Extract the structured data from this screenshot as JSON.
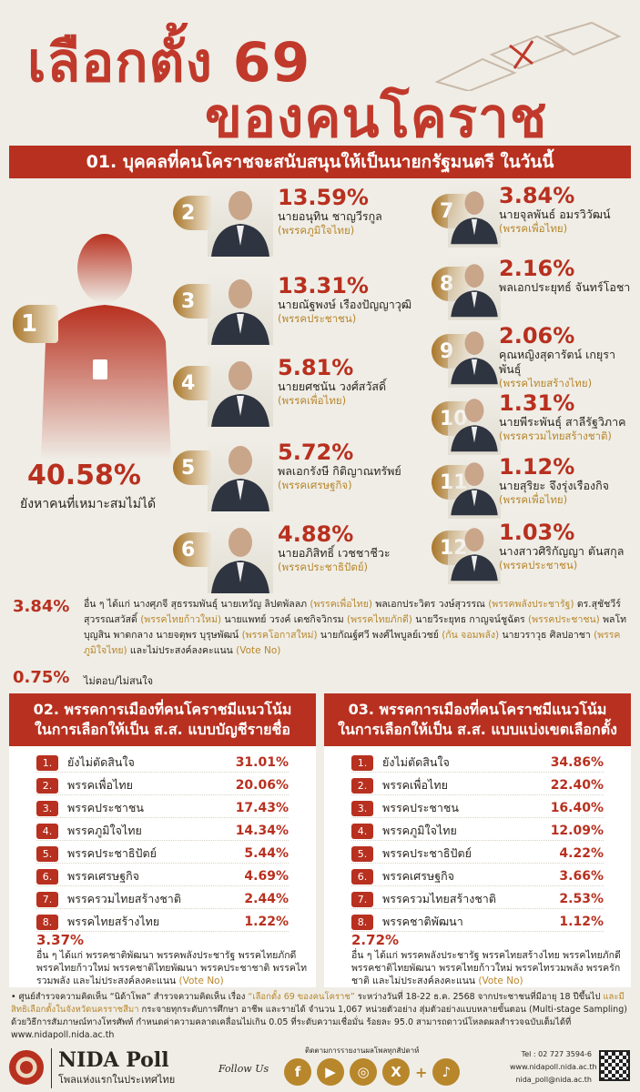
{
  "header": {
    "title_line1": "เลือกตั้ง 69",
    "title_line2": "ของคนโคราช"
  },
  "section1": {
    "title": "01. บุคคลที่คนโคราชจะสนับสนุนให้เป็นนายกรัฐมนตรี ในวันนี้",
    "first": {
      "rank": "1",
      "pct": "40.58%",
      "label": "ยังหาคนที่เหมาะสมไม่ได้"
    },
    "candidates": [
      {
        "rank": "2",
        "pct": "13.59%",
        "name": "นายอนุทิน ชาญวีรกูล",
        "party": "(พรรคภูมิใจไทย)"
      },
      {
        "rank": "3",
        "pct": "13.31%",
        "name": "นายณัฐพงษ์ เรืองปัญญาวุฒิ",
        "party": "(พรรคประชาชน)"
      },
      {
        "rank": "4",
        "pct": "5.81%",
        "name": "นายยศชนัน วงศ์สวัสดิ์",
        "party": "(พรรคเพื่อไทย)"
      },
      {
        "rank": "5",
        "pct": "5.72%",
        "name": "พลเอกรังษี กิติญาณทรัพย์",
        "party": "(พรรคเศรษฐกิจ)"
      },
      {
        "rank": "6",
        "pct": "4.88%",
        "name": "นายอภิสิทธิ์ เวชชาชีวะ",
        "party": "(พรรคประชาธิปัตย์)"
      },
      {
        "rank": "7",
        "pct": "3.84%",
        "name": "นายจุลพันธ์ อมรวิวัฒน์",
        "party": "(พรรคเพื่อไทย)"
      },
      {
        "rank": "8",
        "pct": "2.16%",
        "name": "พลเอกประยุทธ์ จันทร์โอชา",
        "party": ""
      },
      {
        "rank": "9",
        "pct": "2.06%",
        "name": "คุณหญิงสุดารัตน์ เกยุราพันธุ์",
        "party": "(พรรคไทยสร้างไทย)"
      },
      {
        "rank": "10",
        "pct": "1.31%",
        "name": "นายพีระพันธุ์ สาลีรัฐวิภาค",
        "party": "(พรรครวมไทยสร้างชาติ)"
      },
      {
        "rank": "11",
        "pct": "1.12%",
        "name": "นายสุริยะ จึงรุ่งเรืองกิจ",
        "party": "(พรรคเพื่อไทย)"
      },
      {
        "rank": "12",
        "pct": "1.03%",
        "name": "นางสาวศิริกัญญา ตันสกุล",
        "party": "(พรรคประชาชน)"
      }
    ],
    "others": {
      "pct": "3.84%",
      "parts": [
        "อื่น ๆ ได้แก่ นางศุภจี สุธรรมพันธุ์ นายเทวัญ ลิปตพัลลภ ",
        "(พรรคเพื่อไทย)",
        " พลเอกประวิตร วงษ์สุวรรณ ",
        "(พรรคพลังประชารัฐ)",
        " ดร.สุชัชวีร์ สุวรรณสวัสดิ์ ",
        "(พรรคไทยก้าวใหม่)",
        " นายแพทย์ วรงค์ เดชกิจวิกรม ",
        "(พรรคไทยภักดี)",
        " นายวีระยุทธ กาญจน์ชูฉัตร ",
        "(พรรคประชาชน)",
        " พลโทบุญสิน พาดกลาง นายจตุพร บุรุษพัฒน์ ",
        "(พรรคโอกาสใหม่)",
        " นายกัณฐ์ศวี พงศ์ไพบูลย์เวชย์ ",
        "(กัน จอมพลัง)",
        " นายวราวุธ ศิลปอาชา ",
        "(พรรคภูมิใจไทย)",
        " และไม่ประสงค์ลงคะแนน ",
        "(Vote No)"
      ]
    },
    "no_answer": {
      "pct": "0.75%",
      "label": "ไม่ตอบ/ไม่สนใจ"
    }
  },
  "chart_data": [
    {
      "type": "table",
      "title": "02. พรรคการเมืองที่คนโคราชมีแนวโน้ม ในการเลือกให้เป็น ส.ส. แบบบัญชีรายชื่อ",
      "rows": [
        {
          "rank": "1.",
          "label": "ยังไม่ตัดสินใจ",
          "value": "31.01%"
        },
        {
          "rank": "2.",
          "label": "พรรคเพื่อไทย",
          "value": "20.06%"
        },
        {
          "rank": "3.",
          "label": "พรรคประชาชน",
          "value": "17.43%"
        },
        {
          "rank": "4.",
          "label": "พรรคภูมิใจไทย",
          "value": "14.34%"
        },
        {
          "rank": "5.",
          "label": "พรรคประชาธิปัตย์",
          "value": "5.44%"
        },
        {
          "rank": "6.",
          "label": "พรรคเศรษฐกิจ",
          "value": "4.69%"
        },
        {
          "rank": "7.",
          "label": "พรรครวมไทยสร้างชาติ",
          "value": "2.44%"
        },
        {
          "rank": "8.",
          "label": "พรรคไทยสร้างไทย",
          "value": "1.22%"
        }
      ],
      "other_pct": "3.37%",
      "other_text": "อื่น ๆ ได้แก่ พรรคชาติพัฒนา พรรคพลังประชารัฐ พรรคไทยภักดี พรรคไทยก้าวใหม่ พรรคชาติไทยพัฒนา พรรคประชาชาติ พรรคไทรวมพลัง และไม่ประสงค์ลงคะแนน ",
      "other_vote": "(Vote No)"
    },
    {
      "type": "table",
      "title": "03. พรรคการเมืองที่คนโคราชมีแนวโน้ม ในการเลือกให้เป็น ส.ส. แบบแบ่งเขตเลือกตั้ง",
      "rows": [
        {
          "rank": "1.",
          "label": "ยังไม่ตัดสินใจ",
          "value": "34.86%"
        },
        {
          "rank": "2.",
          "label": "พรรคเพื่อไทย",
          "value": "22.40%"
        },
        {
          "rank": "3.",
          "label": "พรรคประชาชน",
          "value": "16.40%"
        },
        {
          "rank": "4.",
          "label": "พรรคภูมิใจไทย",
          "value": "12.09%"
        },
        {
          "rank": "5.",
          "label": "พรรคประชาธิปัตย์",
          "value": "4.22%"
        },
        {
          "rank": "6.",
          "label": "พรรคเศรษฐกิจ",
          "value": "3.66%"
        },
        {
          "rank": "7.",
          "label": "พรรครวมไทยสร้างชาติ",
          "value": "2.53%"
        },
        {
          "rank": "8.",
          "label": "พรรคชาติพัฒนา",
          "value": "1.12%"
        }
      ],
      "other_pct": "2.72%",
      "other_text": "อื่น ๆ ได้แก่ พรรคพลังประชารัฐ พรรคไทยสร้างไทย พรรคไทยภักดี พรรคชาติไทยพัฒนา พรรคไทยก้าวใหม่ พรรคไทรวมพลัง พรรครักชาติ และไม่ประสงค์ลงคะแนน ",
      "other_vote": "(Vote No)"
    }
  ],
  "methodology": {
    "a": "• ศูนย์สำรวจความคิดเห็น “นิด้าโพล” สำรวจความคิดเห็น เรื่อง ",
    "b": "“เลือกตั้ง 69 ของคนโคราช”",
    "c": " ระหว่างวันที่ 18-22 ธ.ค. 2568 จากประชาชนที่มีอายุ 18 ปีขึ้นไป ",
    "d": "และมีสิทธิเลือกตั้งในจังหวัดนครราชสีมา",
    "e": " กระจายทุกระดับการศึกษา อาชีพ และรายได้ จำนวน 1,067 หน่วยตัวอย่าง สุ่มตัวอย่างแบบหลายขั้นตอน (Multi-stage Sampling) ด้วยวิธีการสัมภาษณ์ทางโทรศัพท์ กำหนดค่าความคลาดเคลื่อนไม่เกิน 0.05 ที่ระดับความเชื่อมั่น ร้อยละ 95.0 สามารถดาวน์โหลดผลสำรวจฉบับเต็มได้ที่ www.nidapoll.nida.ac.th"
  },
  "footer": {
    "brand": "NIDA Poll",
    "tagline": "โพลแห่งแรกในประเทศไทย",
    "follow": "Follow Us",
    "follow_note": "ติดตามการรายงานผลโพลทุกสัปดาห์",
    "plus": "+",
    "tel": "Tel : 02 727 3594-6",
    "web": "www.nidapoll.nida.ac.th",
    "email": "nida_poll@nida.ac.th",
    "social": [
      {
        "icon": "facebook-icon",
        "glyph": "f"
      },
      {
        "icon": "youtube-icon",
        "glyph": "▶"
      },
      {
        "icon": "instagram-icon",
        "glyph": "◎"
      },
      {
        "icon": "x-icon",
        "glyph": "X"
      },
      {
        "icon": "tiktok-icon",
        "glyph": "♪"
      }
    ]
  },
  "colors": {
    "red": "#b8301f",
    "gold": "#b8862b",
    "background": "#efede6"
  }
}
